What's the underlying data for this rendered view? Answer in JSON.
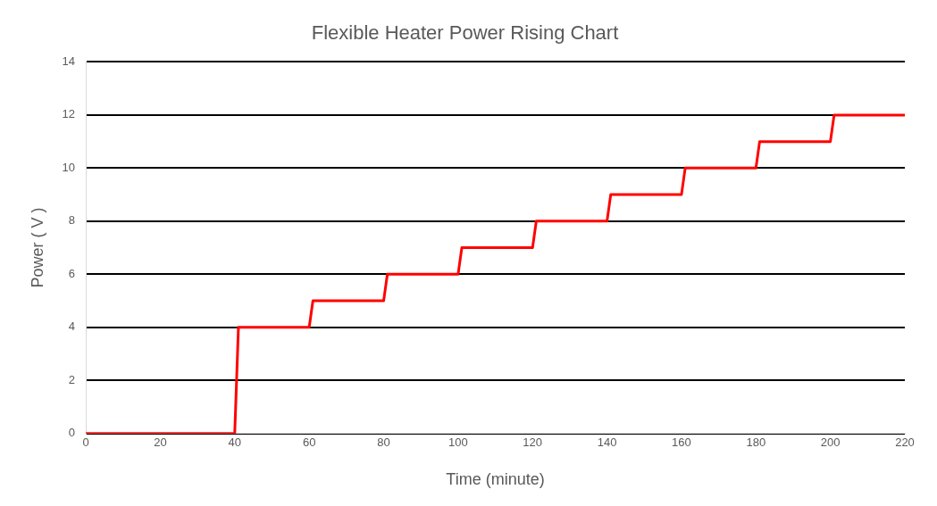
{
  "chart_data": {
    "type": "line",
    "title": "Flexible Heater Power Rising Chart",
    "xlabel": "Time (minute)",
    "ylabel": "Power ( V )",
    "x": [
      0,
      40,
      41,
      60,
      61,
      80,
      81,
      100,
      101,
      120,
      121,
      140,
      141,
      160,
      161,
      180,
      181,
      200,
      201,
      220
    ],
    "series": [
      {
        "color": "#ff0000",
        "values": [
          0,
          0,
          4,
          4,
          5,
          5,
          6,
          6,
          7,
          7,
          8,
          8,
          9,
          9,
          10,
          10,
          11,
          11,
          12,
          12
        ]
      }
    ],
    "xlim": [
      0,
      220
    ],
    "xticks": [
      0,
      20,
      40,
      60,
      80,
      100,
      120,
      140,
      160,
      180,
      200,
      220
    ],
    "ylim": [
      0,
      14
    ],
    "yticks": [
      0,
      2,
      4,
      6,
      8,
      10,
      12,
      14
    ],
    "grid": "y",
    "legend": false,
    "marker": "none",
    "line_style": "solid"
  }
}
